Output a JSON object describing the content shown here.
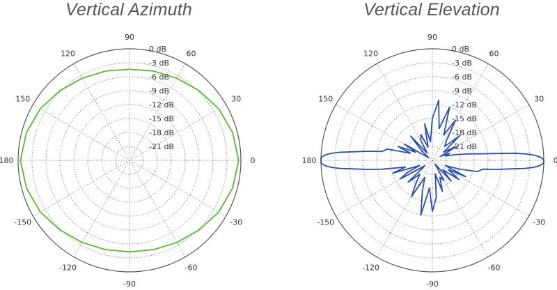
{
  "chart_data": [
    {
      "type": "polar-line",
      "title": "Vertical Azimuth",
      "angle_ticks": [
        "0",
        "30",
        "60",
        "90",
        "120",
        "150",
        "180",
        "-150",
        "-120",
        "-90",
        "-60",
        "-30"
      ],
      "radial_ticks": [
        "0 dB",
        "-3 dB",
        "-6 dB",
        "-9 dB",
        "-12 dB",
        "-15 dB",
        "-18 dB",
        "-21 dB"
      ],
      "r_range_db": [
        -24,
        0
      ],
      "grid": true,
      "series": [
        {
          "color": "#55bb33",
          "angle_deg": [
            0,
            15,
            30,
            45,
            60,
            75,
            90,
            105,
            120,
            135,
            150,
            165,
            180,
            195,
            210,
            225,
            240,
            255,
            270,
            285,
            300,
            315,
            330,
            345,
            360
          ],
          "gain_db": [
            -0.5,
            -1.0,
            -1.8,
            -2.8,
            -3.6,
            -4.1,
            -4.4,
            -4.1,
            -3.6,
            -2.8,
            -1.8,
            -1.0,
            -0.5,
            -1.0,
            -1.8,
            -2.8,
            -3.6,
            -4.1,
            -4.3,
            -4.1,
            -3.6,
            -2.8,
            -1.8,
            -1.0,
            -0.5
          ]
        }
      ]
    },
    {
      "type": "polar-line",
      "title": "Vertical Elevation",
      "angle_ticks": [
        "0",
        "30",
        "60",
        "90",
        "120",
        "150",
        "180",
        "-150",
        "-120",
        "-90",
        "-60",
        "-30"
      ],
      "radial_ticks": [
        "0 dB",
        "-3 dB",
        "-6 dB",
        "-9 dB",
        "-12 dB",
        "-15 dB",
        "-18 dB",
        "-21 dB"
      ],
      "r_range_db": [
        -24,
        0
      ],
      "grid": true,
      "series": [
        {
          "color": "#2a4fa8",
          "angle_deg": [
            0,
            1,
            2,
            3,
            4,
            5,
            6,
            8,
            10,
            14,
            18,
            22,
            26,
            30,
            36,
            42,
            48,
            54,
            60,
            66,
            72,
            78,
            84,
            90,
            96,
            102,
            108,
            114,
            120,
            126,
            132,
            138,
            144,
            150,
            154,
            158,
            162,
            166,
            170,
            172,
            174,
            175,
            176,
            177,
            178,
            179,
            180,
            181,
            182,
            183,
            184,
            185,
            186,
            188,
            190,
            194,
            198,
            202,
            206,
            210,
            216,
            222,
            228,
            234,
            240,
            246,
            252,
            258,
            264,
            270,
            276,
            282,
            288,
            294,
            300,
            306,
            312,
            318,
            324,
            330,
            334,
            338,
            342,
            346,
            350,
            352,
            354,
            355,
            356,
            357,
            358,
            359,
            360
          ],
          "gain_db": [
            0,
            -0.3,
            -1.0,
            -2.2,
            -4.0,
            -6.5,
            -10,
            -14,
            -16,
            -19,
            -21,
            -20,
            -22,
            -18,
            -21,
            -16,
            -20,
            -19,
            -14,
            -18,
            -12,
            -17,
            -11,
            -15,
            -20,
            -16,
            -21,
            -18,
            -19,
            -22,
            -17,
            -21,
            -23,
            -17,
            -20,
            -16,
            -19,
            -14,
            -13,
            -10,
            -6.5,
            -4.0,
            -2.2,
            -1.0,
            -0.3,
            0,
            0,
            0,
            -0.3,
            -1.0,
            -2.2,
            -4.0,
            -6.5,
            -10,
            -13,
            -18,
            -15,
            -21,
            -18,
            -16,
            -22,
            -17,
            -20,
            -18,
            -15,
            -20,
            -17,
            -12,
            -18,
            -13,
            -16,
            -21,
            -17,
            -20,
            -19,
            -23,
            -18,
            -21,
            -17,
            -20,
            -16,
            -21,
            -18,
            -14,
            -13,
            -10,
            -6.5,
            -4.0,
            -2.2,
            -1.0,
            -0.3,
            0,
            0
          ]
        }
      ]
    }
  ]
}
